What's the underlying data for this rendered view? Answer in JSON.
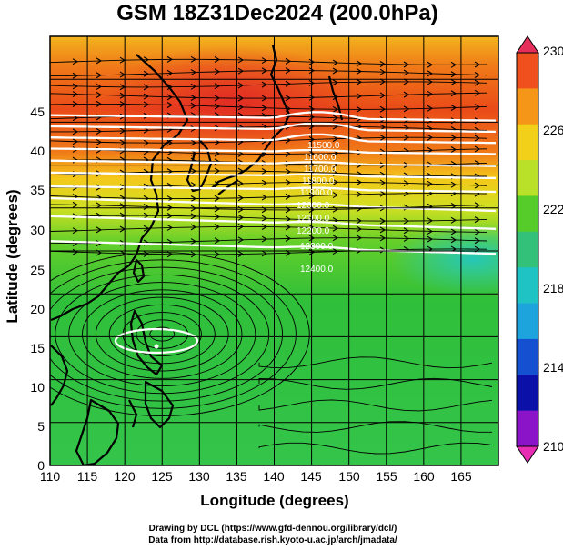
{
  "title": "GSM 18Z31Dec2024 (200.0hPa)",
  "x_axis": {
    "label": "Longitude (degrees)",
    "ticks": [
      "110",
      "115",
      "120",
      "125",
      "130",
      "135",
      "140",
      "145",
      "150",
      "155",
      "160",
      "165"
    ]
  },
  "y_axis": {
    "label": "Latitude  (degrees)",
    "ticks": [
      "0",
      "5",
      "10",
      "15",
      "20",
      "25",
      "30",
      "35",
      "40",
      "45"
    ]
  },
  "colorbar": {
    "ticks": [
      "230",
      "226",
      "222",
      "218",
      "214",
      "210"
    ],
    "colors": [
      "#e52e5a",
      "#f0501e",
      "#f59618",
      "#f2cf18",
      "#b9e12a",
      "#56cc2a",
      "#33c17a",
      "#20c3c3",
      "#1ea4dc",
      "#1450d0",
      "#0a10a8",
      "#8c14c8",
      "#e62db4"
    ]
  },
  "height_contours": {
    "color": "#ffffff",
    "labels": [
      "11500.0",
      "11600.0",
      "11700.0",
      "11800.0",
      "11900.0",
      "12000.0",
      "12100.0",
      "12200.0",
      "12300.0",
      "12400.0"
    ]
  },
  "footer": {
    "line1": "Drawing by DCL (https://www.gfd-dennou.org/library/dcl/)",
    "line2": "Data from http://database.rish.kyoto-u.ac.jp/arch/jmadata/"
  },
  "chart_data": {
    "type": "map",
    "field": "temperature at 200 hPa (K) with geopotential height contours (m) and streamlines",
    "region": {
      "lon": [
        110,
        170
      ],
      "lat": [
        0,
        50
      ]
    },
    "colorbar_range": [
      210,
      230
    ],
    "height_contour_values": [
      11500,
      11600,
      11700,
      11800,
      11900,
      12000,
      12100,
      12200,
      12300,
      12400
    ]
  }
}
